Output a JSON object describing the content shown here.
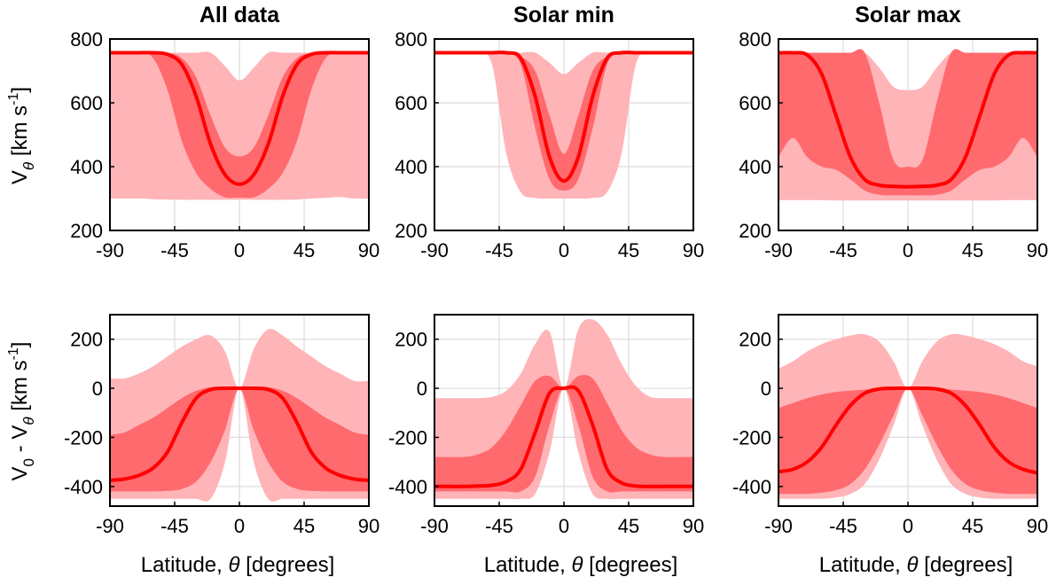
{
  "figure": {
    "row_labels": {
      "top": {
        "main": "V",
        "sub": "θ",
        "unit": " [km s",
        "sup": "-1",
        "close": "]"
      },
      "bottom": {
        "a": "V",
        "a_sub": "0",
        "mid": " - V",
        "b_sub": "θ",
        "unit": " [km s",
        "sup": "-1",
        "close": "]"
      }
    },
    "xlabel": {
      "prefix": "Latitude, ",
      "sym": "θ",
      "suffix": " [degrees]"
    }
  },
  "colors": {
    "outer_band": "#ffb4b8",
    "inner_band": "#ff6a6e",
    "median": "#ff0000",
    "grid": "#dcdcdc"
  },
  "chart_data": [
    {
      "type": "area",
      "title": "All data",
      "row": 0,
      "col": 0,
      "xlim": [
        -90,
        90
      ],
      "ylim": [
        200,
        800
      ],
      "xticks": [
        -90,
        -45,
        0,
        45,
        90
      ],
      "yticks": [
        200,
        400,
        600,
        800
      ],
      "grid": true,
      "x": [
        -90,
        -80,
        -70,
        -60,
        -50,
        -40,
        -30,
        -20,
        -10,
        0,
        10,
        20,
        30,
        40,
        50,
        60,
        70,
        80,
        90
      ],
      "outer_upper": [
        757,
        757,
        757,
        757,
        757,
        757,
        757,
        757,
        715,
        670,
        710,
        757,
        757,
        757,
        757,
        757,
        757,
        757,
        757
      ],
      "outer_lower": [
        300,
        300,
        300,
        298,
        297,
        296,
        296,
        296,
        296,
        296,
        296,
        296,
        296,
        297,
        300,
        302,
        305,
        300,
        300
      ],
      "inner_upper": [
        757,
        757,
        757,
        757,
        757,
        740,
        680,
        560,
        460,
        432,
        460,
        560,
        680,
        740,
        757,
        757,
        757,
        757,
        757
      ],
      "inner_lower": [
        757,
        757,
        757,
        740,
        640,
        480,
        380,
        330,
        304,
        303,
        304,
        330,
        380,
        480,
        640,
        740,
        757,
        757,
        757
      ],
      "median": [
        757,
        757,
        757,
        757,
        752,
        720,
        620,
        470,
        375,
        345,
        375,
        470,
        620,
        720,
        752,
        757,
        757,
        757,
        757
      ]
    },
    {
      "type": "area",
      "title": "Solar min",
      "row": 0,
      "col": 1,
      "xlim": [
        -90,
        90
      ],
      "ylim": [
        200,
        800
      ],
      "xticks": [
        -90,
        -45,
        0,
        45,
        90
      ],
      "yticks": [
        200,
        400,
        600,
        800
      ],
      "grid": true,
      "x": [
        -90,
        -80,
        -70,
        -60,
        -50,
        -40,
        -30,
        -20,
        -10,
        0,
        10,
        20,
        30,
        40,
        50,
        60,
        70,
        80,
        90
      ],
      "outer_upper": [
        757,
        757,
        757,
        757,
        757,
        757,
        757,
        757,
        725,
        690,
        725,
        757,
        757,
        757,
        757,
        757,
        757,
        757,
        757
      ],
      "outer_lower": [
        757,
        757,
        757,
        757,
        720,
        440,
        320,
        302,
        300,
        300,
        300,
        302,
        320,
        440,
        720,
        757,
        757,
        757,
        757
      ],
      "inner_upper": [
        757,
        757,
        757,
        757,
        757,
        757,
        745,
        700,
        560,
        440,
        560,
        700,
        745,
        757,
        757,
        757,
        757,
        757,
        757
      ],
      "inner_lower": [
        757,
        757,
        757,
        757,
        757,
        757,
        720,
        520,
        360,
        325,
        360,
        520,
        720,
        757,
        757,
        757,
        757,
        757,
        757
      ],
      "median": [
        757,
        757,
        757,
        757,
        757,
        757,
        740,
        620,
        430,
        355,
        430,
        620,
        740,
        757,
        757,
        757,
        757,
        757,
        757
      ]
    },
    {
      "type": "area",
      "title": "Solar max",
      "row": 0,
      "col": 2,
      "xlim": [
        -90,
        90
      ],
      "ylim": [
        200,
        800
      ],
      "xticks": [
        -90,
        -45,
        0,
        45,
        90
      ],
      "yticks": [
        200,
        400,
        600,
        800
      ],
      "grid": true,
      "x": [
        -90,
        -80,
        -70,
        -60,
        -50,
        -40,
        -30,
        -20,
        -10,
        0,
        10,
        20,
        30,
        40,
        50,
        60,
        70,
        80,
        90
      ],
      "outer_upper": [
        757,
        757,
        757,
        757,
        757,
        757,
        757,
        710,
        650,
        640,
        650,
        710,
        757,
        757,
        757,
        757,
        757,
        757,
        757
      ],
      "outer_lower": [
        295,
        295,
        295,
        295,
        294,
        294,
        294,
        294,
        294,
        294,
        294,
        294,
        294,
        294,
        294,
        294,
        295,
        295,
        295
      ],
      "inner_upper": [
        757,
        757,
        757,
        757,
        757,
        757,
        757,
        600,
        420,
        400,
        420,
        600,
        757,
        757,
        757,
        757,
        757,
        757,
        757
      ],
      "inner_lower": [
        430,
        490,
        430,
        400,
        390,
        360,
        325,
        312,
        310,
        310,
        310,
        312,
        325,
        360,
        390,
        400,
        430,
        490,
        430
      ],
      "median": [
        757,
        757,
        750,
        690,
        560,
        430,
        360,
        342,
        338,
        337,
        338,
        342,
        360,
        430,
        560,
        690,
        750,
        757,
        757
      ]
    },
    {
      "type": "area",
      "title": "",
      "row": 1,
      "col": 0,
      "xlim": [
        -90,
        90
      ],
      "ylim": [
        -480,
        300
      ],
      "xticks": [
        -90,
        -45,
        0,
        45,
        90
      ],
      "yticks": [
        -400,
        -200,
        0,
        200
      ],
      "grid": true,
      "x": [
        -90,
        -80,
        -70,
        -60,
        -50,
        -40,
        -30,
        -20,
        -10,
        0,
        10,
        20,
        30,
        40,
        50,
        60,
        70,
        80,
        90
      ],
      "outer_upper": [
        40,
        40,
        60,
        90,
        130,
        170,
        200,
        215,
        150,
        0,
        160,
        240,
        215,
        170,
        130,
        90,
        60,
        30,
        30
      ],
      "outer_lower": [
        -450,
        -450,
        -450,
        -450,
        -450,
        -450,
        -450,
        -450,
        -300,
        0,
        -300,
        -450,
        -450,
        -450,
        -450,
        -450,
        -450,
        -450,
        -450
      ],
      "inner_upper": [
        -190,
        -180,
        -150,
        -120,
        -80,
        -40,
        -10,
        5,
        5,
        0,
        5,
        5,
        -10,
        -40,
        -80,
        -120,
        -150,
        -180,
        -190
      ],
      "inner_lower": [
        -420,
        -420,
        -420,
        -420,
        -418,
        -410,
        -380,
        -300,
        -170,
        0,
        -170,
        -300,
        -380,
        -410,
        -418,
        -420,
        -420,
        -420,
        -420
      ],
      "median": [
        -375,
        -370,
        -355,
        -325,
        -260,
        -140,
        -40,
        -5,
        0,
        0,
        0,
        -5,
        -40,
        -140,
        -260,
        -325,
        -355,
        -370,
        -375
      ]
    },
    {
      "type": "area",
      "title": "",
      "row": 1,
      "col": 1,
      "xlim": [
        -90,
        90
      ],
      "ylim": [
        -480,
        300
      ],
      "xticks": [
        -90,
        -45,
        0,
        45,
        90
      ],
      "yticks": [
        -400,
        -200,
        0,
        200
      ],
      "grid": true,
      "x": [
        -90,
        -80,
        -70,
        -60,
        -50,
        -40,
        -30,
        -20,
        -10,
        0,
        10,
        20,
        30,
        40,
        50,
        60,
        70,
        80,
        90
      ],
      "outer_upper": [
        -40,
        -40,
        -40,
        -40,
        -35,
        -10,
        60,
        180,
        230,
        0,
        240,
        280,
        220,
        100,
        10,
        -35,
        -40,
        -40,
        -40
      ],
      "outer_lower": [
        -450,
        -450,
        -450,
        -450,
        -450,
        -450,
        -450,
        -430,
        -260,
        0,
        -260,
        -430,
        -450,
        -450,
        -450,
        -450,
        -450,
        -450,
        -450
      ],
      "inner_upper": [
        -280,
        -280,
        -280,
        -270,
        -240,
        -170,
        -70,
        30,
        50,
        0,
        50,
        40,
        -60,
        -170,
        -240,
        -270,
        -280,
        -280,
        -280
      ],
      "inner_lower": [
        -420,
        -420,
        -420,
        -420,
        -420,
        -420,
        -420,
        -360,
        -150,
        0,
        -150,
        -360,
        -420,
        -420,
        -420,
        -420,
        -420,
        -420,
        -420
      ],
      "median": [
        -400,
        -400,
        -400,
        -398,
        -395,
        -380,
        -330,
        -180,
        -20,
        0,
        -10,
        -150,
        -330,
        -385,
        -398,
        -400,
        -400,
        -400,
        -400
      ]
    },
    {
      "type": "area",
      "title": "",
      "row": 1,
      "col": 2,
      "xlim": [
        -90,
        90
      ],
      "ylim": [
        -480,
        300
      ],
      "xticks": [
        -90,
        -45,
        0,
        45,
        90
      ],
      "yticks": [
        -400,
        -200,
        0,
        200
      ],
      "grid": true,
      "x": [
        -90,
        -80,
        -70,
        -60,
        -50,
        -40,
        -30,
        -20,
        -10,
        0,
        10,
        20,
        30,
        40,
        50,
        60,
        70,
        80,
        90
      ],
      "outer_upper": [
        80,
        110,
        150,
        180,
        200,
        215,
        220,
        190,
        110,
        0,
        110,
        190,
        220,
        215,
        200,
        180,
        150,
        110,
        90
      ],
      "outer_lower": [
        -450,
        -450,
        -450,
        -450,
        -445,
        -430,
        -390,
        -290,
        -150,
        0,
        -150,
        -290,
        -390,
        -430,
        -445,
        -450,
        -450,
        -450,
        -450
      ],
      "inner_upper": [
        -80,
        -60,
        -40,
        -25,
        -15,
        -10,
        -5,
        -3,
        0,
        0,
        0,
        -3,
        -5,
        -10,
        -15,
        -25,
        -40,
        -60,
        -80
      ],
      "inner_lower": [
        -430,
        -430,
        -430,
        -425,
        -415,
        -390,
        -330,
        -230,
        -110,
        0,
        -110,
        -230,
        -330,
        -390,
        -415,
        -425,
        -430,
        -430,
        -430
      ],
      "median": [
        -340,
        -330,
        -300,
        -240,
        -150,
        -70,
        -20,
        -3,
        0,
        0,
        0,
        -3,
        -20,
        -70,
        -150,
        -240,
        -300,
        -330,
        -345
      ]
    }
  ]
}
